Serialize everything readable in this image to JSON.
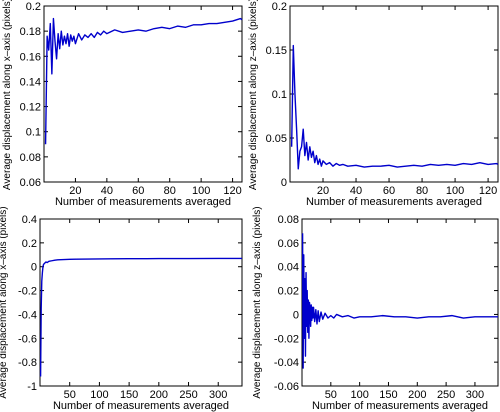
{
  "chart_data": [
    {
      "type": "line",
      "xlabel": "Number of measurements averaged",
      "ylabel": "Average displacement along x–axis (pixels)",
      "xlim": [
        0,
        126
      ],
      "ylim": [
        0.06,
        0.2
      ],
      "xticks": [
        20,
        40,
        60,
        80,
        100,
        120
      ],
      "yticks": [
        0.06,
        0.08,
        0.1,
        0.12,
        0.14,
        0.16,
        0.18,
        0.2
      ],
      "ytick_labels": [
        "0.06",
        "0.08",
        "0.1",
        "0.12",
        "0.14",
        "0.16",
        "0.18",
        "0.2"
      ],
      "grid": false,
      "series": [
        {
          "color": "#0000cc",
          "x": [
            1,
            2,
            3,
            4,
            5,
            6,
            7,
            8,
            9,
            10,
            11,
            12,
            13,
            14,
            15,
            16,
            17,
            18,
            19,
            20,
            22,
            24,
            26,
            28,
            30,
            32,
            34,
            36,
            38,
            40,
            45,
            50,
            55,
            60,
            65,
            70,
            75,
            80,
            85,
            90,
            95,
            100,
            105,
            110,
            115,
            120,
            125,
            126
          ],
          "y": [
            0.09,
            0.176,
            0.165,
            0.186,
            0.146,
            0.19,
            0.172,
            0.158,
            0.178,
            0.166,
            0.18,
            0.169,
            0.176,
            0.17,
            0.178,
            0.168,
            0.177,
            0.172,
            0.176,
            0.17,
            0.178,
            0.173,
            0.177,
            0.175,
            0.178,
            0.175,
            0.179,
            0.177,
            0.18,
            0.178,
            0.181,
            0.179,
            0.18,
            0.181,
            0.18,
            0.182,
            0.183,
            0.182,
            0.184,
            0.183,
            0.185,
            0.185,
            0.186,
            0.186,
            0.187,
            0.188,
            0.19,
            0.189
          ]
        }
      ]
    },
    {
      "type": "line",
      "xlabel": "Number of measurements averaged",
      "ylabel": "Average displacement along z–axis (pixels)",
      "xlim": [
        0,
        126
      ],
      "ylim": [
        0,
        0.2
      ],
      "xticks": [
        20,
        40,
        60,
        80,
        100,
        120
      ],
      "yticks": [
        0,
        0.05,
        0.1,
        0.15,
        0.2
      ],
      "ytick_labels": [
        "0",
        "0.05",
        "0.1",
        "0.15",
        "0.2"
      ],
      "grid": false,
      "series": [
        {
          "color": "#0000cc",
          "x": [
            1,
            2,
            3,
            4,
            5,
            6,
            7,
            8,
            9,
            10,
            11,
            12,
            13,
            14,
            15,
            16,
            17,
            18,
            19,
            20,
            22,
            24,
            26,
            28,
            30,
            32,
            35,
            40,
            45,
            50,
            55,
            60,
            65,
            70,
            75,
            80,
            85,
            90,
            95,
            100,
            105,
            110,
            115,
            120,
            125,
            126
          ],
          "y": [
            0.04,
            0.155,
            0.1,
            0.06,
            0.015,
            0.035,
            0.04,
            0.06,
            0.03,
            0.045,
            0.025,
            0.04,
            0.028,
            0.035,
            0.022,
            0.03,
            0.02,
            0.026,
            0.018,
            0.024,
            0.02,
            0.022,
            0.018,
            0.021,
            0.019,
            0.02,
            0.018,
            0.019,
            0.017,
            0.018,
            0.018,
            0.019,
            0.017,
            0.018,
            0.019,
            0.018,
            0.02,
            0.019,
            0.02,
            0.019,
            0.021,
            0.02,
            0.022,
            0.02,
            0.021,
            0.02
          ]
        }
      ]
    },
    {
      "type": "line",
      "xlabel": "Number of measurements averaged",
      "ylabel": "Average displacement along x–axis (pixels)",
      "xlim": [
        0,
        340
      ],
      "ylim": [
        -1,
        0.4
      ],
      "xticks": [
        50,
        100,
        150,
        200,
        250,
        300
      ],
      "yticks": [
        -1,
        -0.8,
        -0.6,
        -0.4,
        -0.2,
        0,
        0.2,
        0.4
      ],
      "ytick_labels": [
        "-1",
        "-0.8",
        "-0.6",
        "-0.4",
        "-0.2",
        "0",
        "0.2",
        "0.4"
      ],
      "grid": false,
      "series": [
        {
          "color": "#0000cc",
          "x": [
            1,
            2,
            3,
            4,
            5,
            6,
            8,
            10,
            12,
            15,
            20,
            25,
            30,
            40,
            50,
            60,
            80,
            100,
            120,
            150,
            180,
            200,
            250,
            300,
            340
          ],
          "y": [
            -0.92,
            -0.35,
            -0.12,
            -0.05,
            0.0,
            0.02,
            0.03,
            0.04,
            0.035,
            0.045,
            0.05,
            0.055,
            0.058,
            0.06,
            0.062,
            0.063,
            0.064,
            0.065,
            0.066,
            0.067,
            0.067,
            0.068,
            0.068,
            0.069,
            0.069
          ]
        }
      ]
    },
    {
      "type": "line",
      "xlabel": "Number of measurements averaged",
      "ylabel": "Average displacement along z–axis (pixels)",
      "xlim": [
        0,
        340
      ],
      "ylim": [
        -0.06,
        0.08
      ],
      "xticks": [
        50,
        100,
        150,
        200,
        250,
        300
      ],
      "yticks": [
        -0.06,
        -0.04,
        -0.02,
        0,
        0.02,
        0.04,
        0.06,
        0.08
      ],
      "ytick_labels": [
        "-0.06",
        "-0.04",
        "-0.02",
        "0",
        "0.02",
        "0.04",
        "0.06",
        "0.08"
      ],
      "grid": false,
      "series": [
        {
          "color": "#0000cc",
          "x": [
            1,
            2,
            3,
            4,
            5,
            6,
            7,
            8,
            9,
            10,
            11,
            12,
            13,
            14,
            15,
            16,
            17,
            18,
            19,
            20,
            22,
            24,
            26,
            28,
            30,
            33,
            36,
            40,
            45,
            50,
            55,
            60,
            70,
            80,
            90,
            100,
            120,
            140,
            160,
            180,
            200,
            220,
            240,
            260,
            280,
            300,
            320,
            340
          ],
          "y": [
            0.068,
            -0.045,
            0.05,
            -0.02,
            0.03,
            -0.035,
            0.035,
            -0.01,
            0.02,
            -0.015,
            0.012,
            -0.02,
            0.01,
            0.005,
            -0.01,
            0.008,
            -0.005,
            0.006,
            -0.003,
            0.006,
            -0.006,
            0.004,
            -0.008,
            0.003,
            -0.006,
            0.002,
            -0.004,
            0.001,
            -0.003,
            -0.001,
            -0.003,
            0.0,
            -0.002,
            -0.001,
            -0.003,
            -0.002,
            -0.002,
            -0.001,
            -0.002,
            -0.002,
            -0.003,
            -0.002,
            -0.002,
            -0.001,
            -0.003,
            -0.002,
            -0.002,
            -0.002
          ]
        }
      ]
    }
  ]
}
